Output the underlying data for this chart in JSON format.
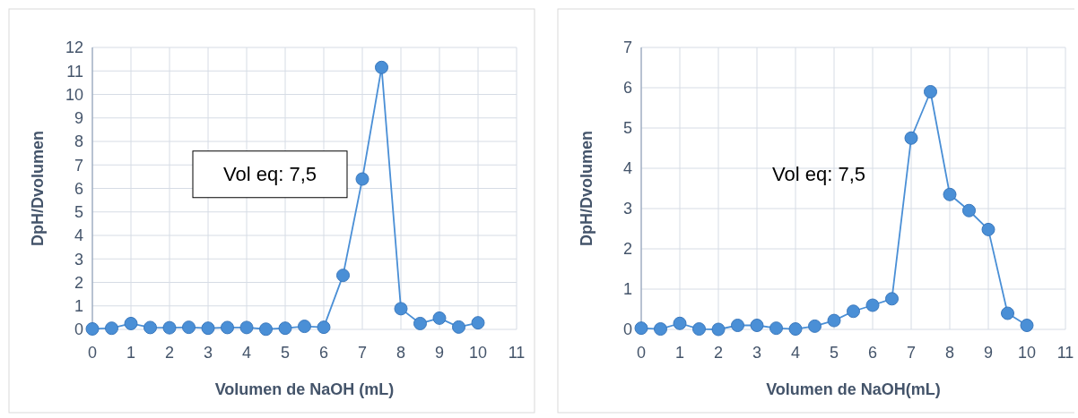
{
  "chart_data": [
    {
      "type": "line",
      "xlabel": "Volumen de NaOH (mL)",
      "ylabel": "DpH/Dvolumen",
      "annotations": [
        "Vol eq: 7,5"
      ],
      "x": [
        0,
        0.5,
        1,
        1.5,
        2,
        2.5,
        3,
        3.5,
        4,
        4.5,
        5,
        5.5,
        6,
        6.5,
        7,
        7.5,
        8,
        8.5,
        9,
        9.5,
        10
      ],
      "series": [
        {
          "color": "#4a8fd6",
          "values": [
            0.02,
            0.05,
            0.25,
            0.08,
            0.07,
            0.09,
            0.05,
            0.08,
            0.08,
            0.01,
            0.05,
            0.13,
            0.09,
            2.3,
            6.4,
            11.15,
            0.88,
            0.25,
            0.48,
            0.1,
            0.28
          ]
        }
      ],
      "xlim": [
        0,
        11
      ],
      "xticks": [
        0,
        1,
        2,
        3,
        4,
        5,
        6,
        7,
        8,
        9,
        10,
        11
      ],
      "ylim": [
        0,
        12
      ],
      "yticks": [
        0,
        1,
        2,
        3,
        4,
        5,
        6,
        7,
        8,
        9,
        10,
        11,
        12
      ],
      "grid": true,
      "marker": "circle",
      "line_style": "solid"
    },
    {
      "type": "line",
      "xlabel": "Volumen de NaOH(mL)",
      "ylabel": "DpH/Dvolumen",
      "annotations": [
        "Vol eq: 7,5"
      ],
      "x": [
        0,
        0.5,
        1,
        1.5,
        2,
        2.5,
        3,
        3.5,
        4,
        4.5,
        5,
        5.5,
        6,
        6.5,
        7,
        7.5,
        8,
        8.5,
        9,
        9.5,
        10
      ],
      "series": [
        {
          "color": "#4a8fd6",
          "values": [
            0.03,
            0.01,
            0.15,
            0.01,
            0,
            0.1,
            0.1,
            0.03,
            0.01,
            0.08,
            0.22,
            0.45,
            0.6,
            0.76,
            4.75,
            5.9,
            3.35,
            2.95,
            2.48,
            0.4,
            0.1
          ]
        }
      ],
      "xlim": [
        0,
        11
      ],
      "xticks": [
        0,
        1,
        2,
        3,
        4,
        5,
        6,
        7,
        8,
        9,
        10,
        11
      ],
      "ylim": [
        0,
        7
      ],
      "yticks": [
        0,
        1,
        2,
        3,
        4,
        5,
        6,
        7
      ],
      "grid": true,
      "marker": "circle",
      "line_style": "solid"
    }
  ]
}
